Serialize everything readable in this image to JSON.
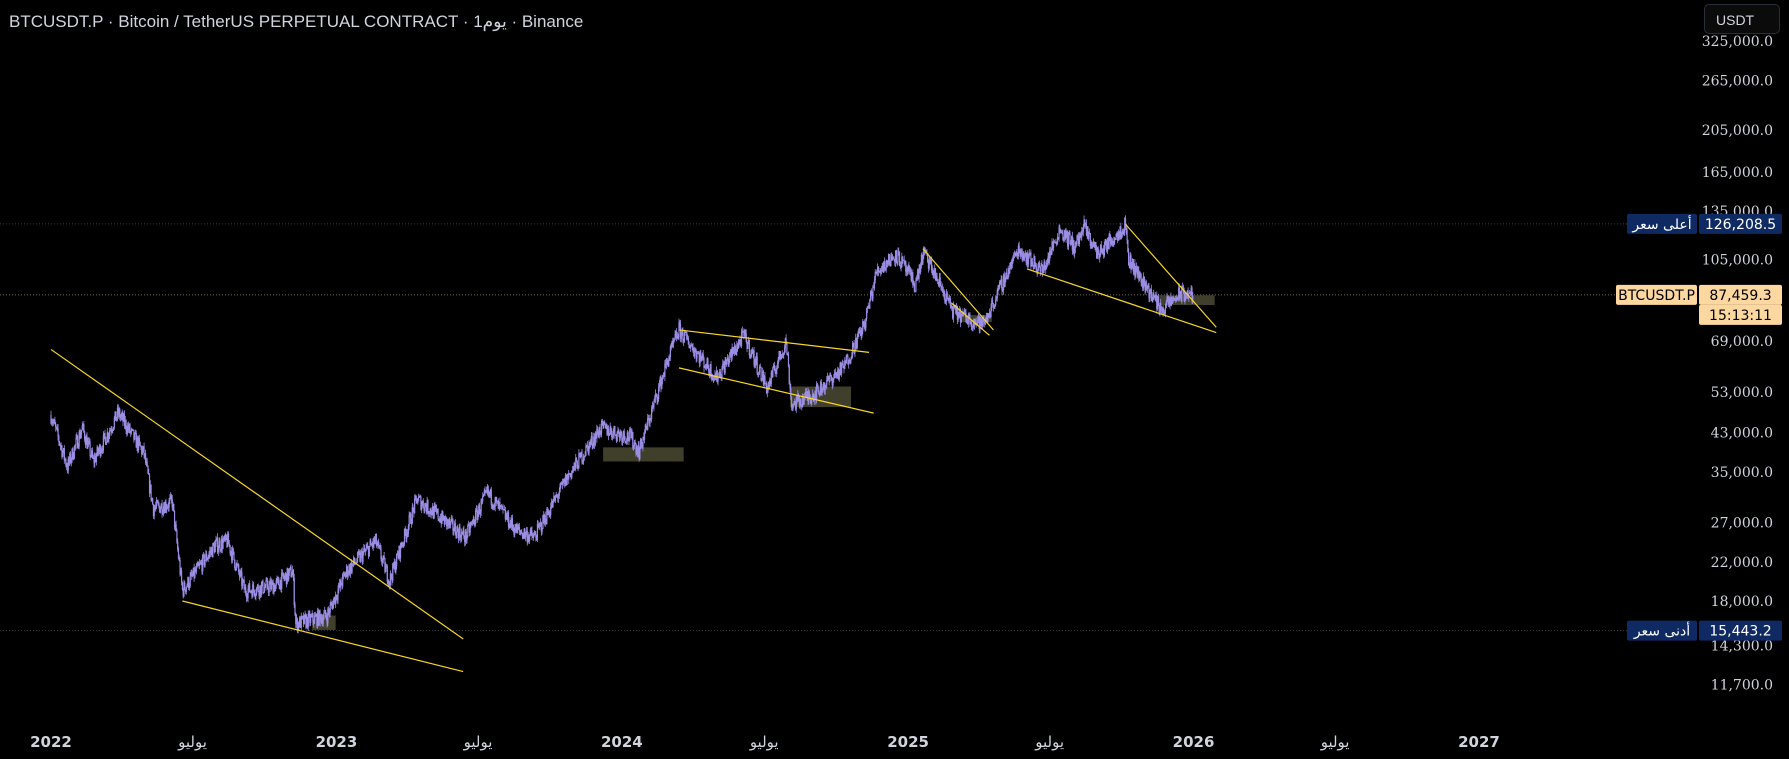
{
  "header": {
    "symbol": "BTCUSDT.P",
    "description": "Bitcoin / TetherUS PERPETUAL CONTRACT",
    "interval": "1يوم",
    "exchange": "Binance",
    "currency_button": "USDT"
  },
  "colors": {
    "background": "#000000",
    "candles": "#9c8fe6",
    "trendlines": "#f5d628",
    "zones": "#4a4a32",
    "high_low_badge": "#0f2a63",
    "last_price_badge": "#fdd7a0",
    "grid_text": "#d1d4dc"
  },
  "markers": {
    "high": {
      "label": "أعلى سعر",
      "value": 126208.5,
      "text": "126,208.5"
    },
    "low": {
      "label": "أدنى سعر",
      "value": 15443.2,
      "text": "15,443.2"
    },
    "last": {
      "symbol": "BTCUSDT.P",
      "value": 87459.3,
      "text": "87,459.3",
      "countdown": "15:13:11"
    }
  },
  "chart_data": {
    "type": "candlestick",
    "title": "BTCUSDT.P · Bitcoin / TetherUS PERPETUAL CONTRACT · 1يوم · Binance",
    "scale": "log",
    "x_ticks": [
      {
        "label": "2022",
        "date": "2022-01-01"
      },
      {
        "label": "يوليو",
        "date": "2022-07-01"
      },
      {
        "label": "2023",
        "date": "2023-01-01"
      },
      {
        "label": "يوليو",
        "date": "2023-07-01"
      },
      {
        "label": "2024",
        "date": "2024-01-01"
      },
      {
        "label": "يوليو",
        "date": "2024-07-01"
      },
      {
        "label": "2025",
        "date": "2025-01-01"
      },
      {
        "label": "يوليو",
        "date": "2025-07-01"
      },
      {
        "label": "2026",
        "date": "2026-01-01"
      },
      {
        "label": "يوليو",
        "date": "2026-07-01"
      },
      {
        "label": "2027",
        "date": "2027-01-01"
      }
    ],
    "y_ticks": [
      {
        "label": "325,000.0",
        "value": 325000
      },
      {
        "label": "265,000.0",
        "value": 265000
      },
      {
        "label": "205,000.0",
        "value": 205000
      },
      {
        "label": "165,000.0",
        "value": 165000
      },
      {
        "label": "135,000.0",
        "value": 135000
      },
      {
        "label": "105,000.0",
        "value": 105000
      },
      {
        "label": "69,000.0",
        "value": 69000
      },
      {
        "label": "53,000.0",
        "value": 53000
      },
      {
        "label": "43,000.0",
        "value": 43000
      },
      {
        "label": "35,000.0",
        "value": 35000
      },
      {
        "label": "27,000.0",
        "value": 27000
      },
      {
        "label": "22,000.0",
        "value": 22000
      },
      {
        "label": "18,000.0",
        "value": 18000
      },
      {
        "label": "14,300.0",
        "value": 14300
      },
      {
        "label": "11,700.0",
        "value": 11700
      }
    ],
    "price_path": [
      [
        "2022-01-01",
        47000
      ],
      [
        "2022-01-22",
        36000
      ],
      [
        "2022-02-10",
        44000
      ],
      [
        "2022-02-24",
        37000
      ],
      [
        "2022-03-28",
        47500
      ],
      [
        "2022-04-30",
        38500
      ],
      [
        "2022-05-12",
        29000
      ],
      [
        "2022-06-05",
        30000
      ],
      [
        "2022-06-18",
        19000
      ],
      [
        "2022-07-30",
        24000
      ],
      [
        "2022-08-15",
        24500
      ],
      [
        "2022-09-06",
        19000
      ],
      [
        "2022-10-15",
        19500
      ],
      [
        "2022-11-06",
        21000
      ],
      [
        "2022-11-10",
        16000
      ],
      [
        "2022-12-20",
        16700
      ],
      [
        "2023-01-14",
        21000
      ],
      [
        "2023-02-20",
        24500
      ],
      [
        "2023-03-10",
        20000
      ],
      [
        "2023-04-14",
        30500
      ],
      [
        "2023-06-15",
        25000
      ],
      [
        "2023-07-13",
        31500
      ],
      [
        "2023-08-18",
        26000
      ],
      [
        "2023-09-11",
        25000
      ],
      [
        "2023-10-23",
        34000
      ],
      [
        "2023-12-05",
        44000
      ],
      [
        "2024-01-12",
        42000
      ],
      [
        "2024-01-23",
        39000
      ],
      [
        "2024-02-28",
        62000
      ],
      [
        "2024-03-14",
        73000
      ],
      [
        "2024-05-01",
        57000
      ],
      [
        "2024-06-05",
        71000
      ],
      [
        "2024-07-05",
        54000
      ],
      [
        "2024-07-29",
        69000
      ],
      [
        "2024-08-05",
        49500
      ],
      [
        "2024-09-06",
        53000
      ],
      [
        "2024-10-10",
        60000
      ],
      [
        "2024-11-06",
        75000
      ],
      [
        "2024-11-22",
        99000
      ],
      [
        "2024-12-17",
        108000
      ],
      [
        "2025-01-10",
        92000
      ],
      [
        "2025-01-21",
        109000
      ],
      [
        "2025-02-28",
        80000
      ],
      [
        "2025-04-07",
        75000
      ],
      [
        "2025-05-22",
        111000
      ],
      [
        "2025-06-22",
        99000
      ],
      [
        "2025-07-14",
        123000
      ],
      [
        "2025-08-02",
        112000
      ],
      [
        "2025-08-14",
        124000
      ],
      [
        "2025-09-01",
        108000
      ],
      [
        "2025-10-06",
        126000
      ],
      [
        "2025-10-10",
        105000
      ],
      [
        "2025-11-21",
        81000
      ],
      [
        "2025-12-15",
        88000
      ],
      [
        "2025-12-31",
        87459
      ]
    ],
    "trendlines": [
      {
        "from": [
          "2022-01-01",
          66000
        ],
        "to": [
          "2023-06-12",
          14800
        ]
      },
      {
        "from": [
          "2022-06-18",
          18000
        ],
        "to": [
          "2023-06-12",
          12500
        ]
      },
      {
        "from": [
          "2024-03-14",
          73000
        ],
        "to": [
          "2024-11-12",
          65000
        ]
      },
      {
        "from": [
          "2024-03-14",
          60000
        ],
        "to": [
          "2024-11-18",
          47500
        ]
      },
      {
        "from": [
          "2025-01-20",
          111000
        ],
        "to": [
          "2025-04-20",
          73000
        ]
      },
      {
        "from": [
          "2025-02-25",
          84000
        ],
        "to": [
          "2025-04-15",
          71000
        ]
      },
      {
        "from": [
          "2025-06-02",
          100000
        ],
        "to": [
          "2026-01-30",
          72000
        ]
      },
      {
        "from": [
          "2025-10-06",
          126000
        ],
        "to": [
          "2026-01-30",
          74000
        ]
      }
    ],
    "zones": [
      {
        "from": "2022-12-01",
        "to": "2022-12-31",
        "low": 15500,
        "high": 16700
      },
      {
        "from": "2023-12-08",
        "to": "2024-03-20",
        "low": 37000,
        "high": 39800
      },
      {
        "from": "2024-08-03",
        "to": "2024-10-20",
        "low": 49000,
        "high": 54500
      },
      {
        "from": "2025-03-08",
        "to": "2025-04-18",
        "low": 76000,
        "high": 78800
      },
      {
        "from": "2025-11-18",
        "to": "2026-01-28",
        "low": 83000,
        "high": 87300
      }
    ]
  }
}
